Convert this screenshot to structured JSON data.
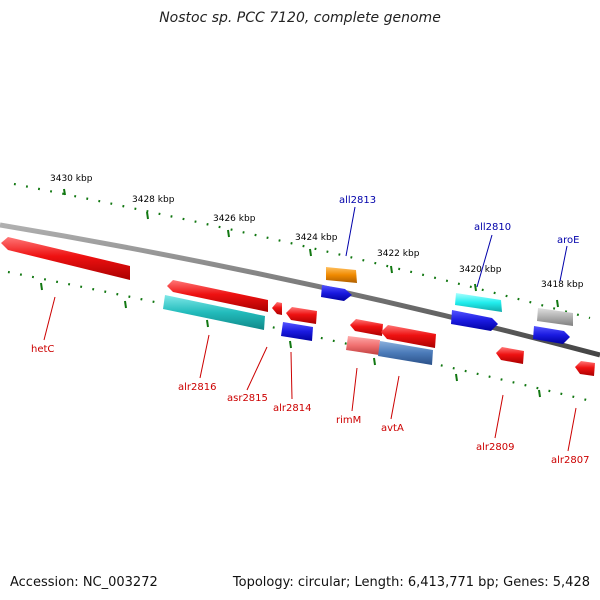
{
  "title": "Nostoc sp. PCC 7120, complete genome",
  "footer": {
    "accession": "Accession: NC_003272",
    "summary": "Topology: circular; Length: 6,413,771 bp; Genes: 5,428"
  },
  "scale_labels": [
    "3430 kbp",
    "3428 kbp",
    "3426 kbp",
    "3424 kbp",
    "3422 kbp",
    "3420 kbp",
    "3418 kbp"
  ],
  "gene_labels_top": [
    "all2813",
    "all2810",
    "aroE"
  ],
  "gene_labels_bottom": [
    "hetC",
    "alr2816",
    "asr2815",
    "alr2814",
    "rimM",
    "avtA",
    "alr2809",
    "alr2807"
  ],
  "colors": {
    "forward_red": "#ee1111",
    "cyan": "#22cccc",
    "blue": "#1a1ae0",
    "orange": "#f08a00",
    "light_cyan": "#22eeee",
    "grey": "#b0b0b0",
    "steel_blue": "#4a7ab8",
    "pink": "#f07070",
    "tick_green": "#117711",
    "backbone": "#808080",
    "label_red": "#cc0000",
    "label_blue": "#0000aa"
  }
}
